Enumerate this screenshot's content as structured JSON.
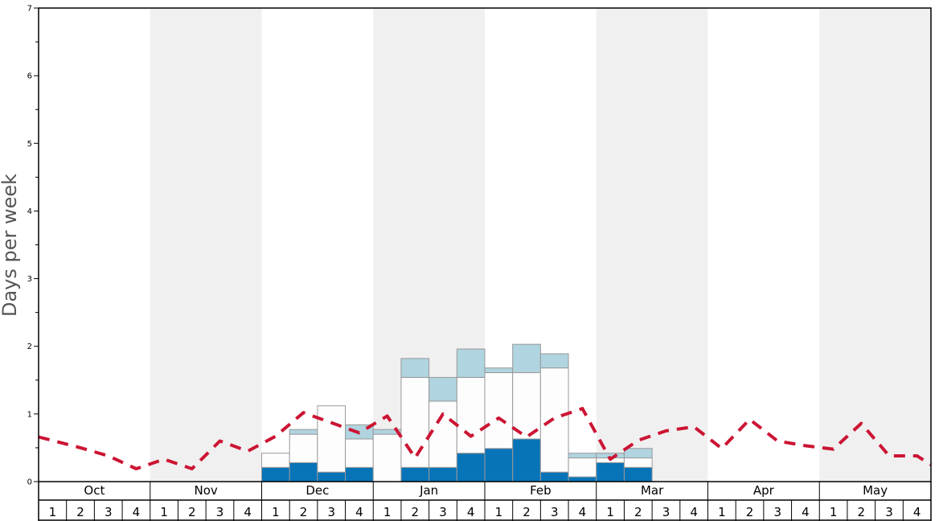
{
  "chart_data": {
    "type": "bar",
    "title": "",
    "xlabel": "",
    "ylabel": "Days per week",
    "ylim": [
      0,
      7
    ],
    "y_major_ticks": [
      "0",
      "1",
      "2",
      "3",
      "4",
      "5",
      "6",
      "7"
    ],
    "grid": false,
    "legend": "none",
    "stacked": true,
    "months": [
      "Oct",
      "Nov",
      "Dec",
      "Jan",
      "Feb",
      "Mar",
      "Apr",
      "May"
    ],
    "weeks": [
      "1",
      "2",
      "3",
      "4"
    ],
    "categories": [
      "Oct 1",
      "Oct 2",
      "Oct 3",
      "Oct 4",
      "Nov 1",
      "Nov 2",
      "Nov 3",
      "Nov 4",
      "Dec 1",
      "Dec 2",
      "Dec 3",
      "Dec 4",
      "Jan 1",
      "Jan 2",
      "Jan 3",
      "Jan 4",
      "Feb 1",
      "Feb 2",
      "Feb 3",
      "Feb 4",
      "Mar 1",
      "Mar 2",
      "Mar 3",
      "Mar 4",
      "Apr 1",
      "Apr 2",
      "Apr 3",
      "Apr 4",
      "May 1",
      "May 2",
      "May 3",
      "May 4"
    ],
    "series": [
      {
        "color": "#0874b8",
        "values": [
          0,
          0,
          0,
          0,
          0,
          0,
          0,
          0,
          0.21,
          0.28,
          0.14,
          0.21,
          0,
          0.21,
          0.21,
          0.42,
          0.49,
          0.63,
          0.14,
          0.07,
          0.28,
          0.21,
          0,
          0,
          0,
          0,
          0,
          0,
          0,
          0,
          0,
          0
        ]
      },
      {
        "color": "#fdfdfd",
        "values": [
          0,
          0,
          0,
          0,
          0,
          0,
          0,
          0,
          0.21,
          0.42,
          0.98,
          0.42,
          0.7,
          1.33,
          0.98,
          1.12,
          1.12,
          0.98,
          1.54,
          0.28,
          0.07,
          0.14,
          0,
          0,
          0,
          0,
          0,
          0,
          0,
          0,
          0,
          0
        ]
      },
      {
        "color": "#b0d4e0",
        "values": [
          0,
          0,
          0,
          0,
          0,
          0,
          0,
          0,
          0,
          0.07,
          0,
          0.21,
          0.07,
          0.28,
          0.35,
          0.42,
          0.07,
          0.42,
          0.21,
          0.07,
          0.07,
          0.14,
          0,
          0,
          0,
          0,
          0,
          0,
          0,
          0,
          0,
          0
        ]
      }
    ],
    "line": {
      "style": "dashed",
      "color": "#cc1433",
      "values": [
        0.66,
        0.5,
        0.38,
        0.19,
        0.33,
        0.19,
        0.6,
        0.45,
        0.67,
        1.02,
        0.87,
        0.72,
        0.97,
        0.35,
        1.0,
        0.67,
        0.94,
        0.66,
        0.94,
        1.08,
        0.33,
        0.61,
        0.75,
        0.81,
        0.49,
        0.92,
        0.6,
        0.53,
        0.48,
        0.86,
        0.38,
        0.38
      ]
    },
    "line_end_value": 0.25,
    "month_band_colors": [
      "#ffffff",
      "#f0f0f0"
    ],
    "bar_border_color": "#999999"
  }
}
